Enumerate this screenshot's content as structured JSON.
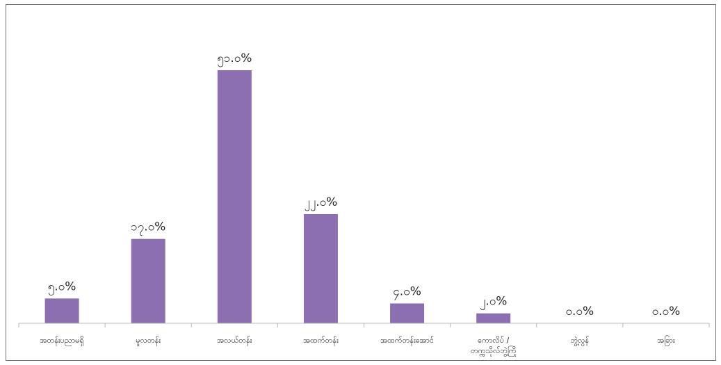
{
  "chart_data": {
    "type": "bar",
    "categories": [
      [
        "အတန်းပညာမရှိ"
      ],
      [
        "မူလတန်း"
      ],
      [
        "အလယ်တန်း"
      ],
      [
        "အထက်တန်း"
      ],
      [
        "အထက်တန်းအောင်"
      ],
      [
        "ကောလိပ် /",
        "တက္ကသိုလ်ဘွဲ့ကြို"
      ],
      [
        "ဘွဲ့လွန်"
      ],
      [
        "အခြား"
      ]
    ],
    "values": [
      5.0,
      17.0,
      51.0,
      22.0,
      4.0,
      2.0,
      0.0,
      0.0
    ],
    "value_labels": [
      "၅.၀%",
      "၁၇.၀%",
      "၅၁.၀%",
      "၂၂.၀%",
      "၄.၀%",
      "၂.၀%",
      "၀.၀%",
      "၀.၀%"
    ],
    "ylim": [
      0,
      51
    ],
    "grid": false,
    "bar_color": "#8c6fb0",
    "axis_color": "#b8b8b8"
  }
}
